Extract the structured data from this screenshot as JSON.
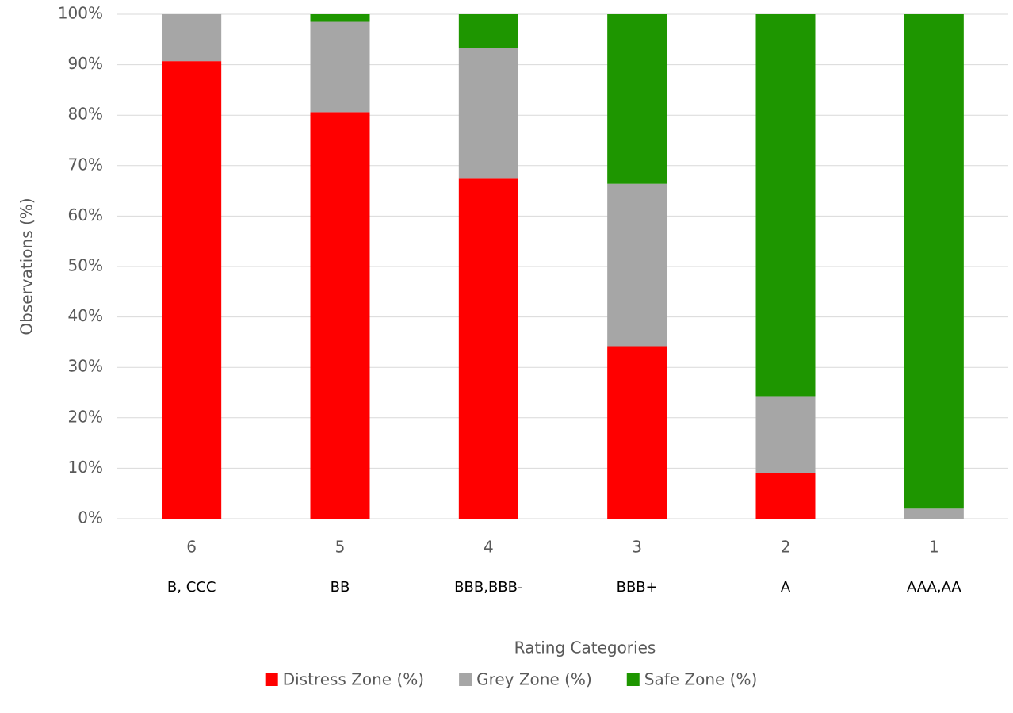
{
  "chart_data": {
    "type": "stacked_bar",
    "categories": [
      "6",
      "5",
      "4",
      "3",
      "2",
      "1"
    ],
    "subcategories": [
      "B, CCC",
      "BB",
      "BBB,BBB-",
      "BBB+",
      "A",
      "AAA,AA"
    ],
    "series": [
      {
        "name": "Distress Zone (%)",
        "color": "#ff0000",
        "values": [
          90.7,
          80.6,
          67.4,
          34.2,
          9.1,
          0
        ]
      },
      {
        "name": "Grey Zone (%)",
        "color": "#a6a6a6",
        "values": [
          9.3,
          17.9,
          25.9,
          32.2,
          15.2,
          2.0
        ]
      },
      {
        "name": "Safe Zone (%)",
        "color": "#1e9600",
        "values": [
          0,
          1.5,
          6.7,
          33.6,
          75.7,
          98.0
        ]
      }
    ],
    "xlabel": "Rating Categories",
    "ylabel": "Observations (%)",
    "ylim": [
      0,
      100
    ],
    "yticks": [
      {
        "value": 0,
        "label": "0%"
      },
      {
        "value": 10,
        "label": "10%"
      },
      {
        "value": 20,
        "label": "20%"
      },
      {
        "value": 30,
        "label": "30%"
      },
      {
        "value": 40,
        "label": "40%"
      },
      {
        "value": 50,
        "label": "50%"
      },
      {
        "value": 60,
        "label": "60%"
      },
      {
        "value": 70,
        "label": "70%"
      },
      {
        "value": 80,
        "label": "80%"
      },
      {
        "value": 90,
        "label": "90%"
      },
      {
        "value": 100,
        "label": "100%"
      }
    ],
    "grid": true,
    "legend": "bottom"
  }
}
